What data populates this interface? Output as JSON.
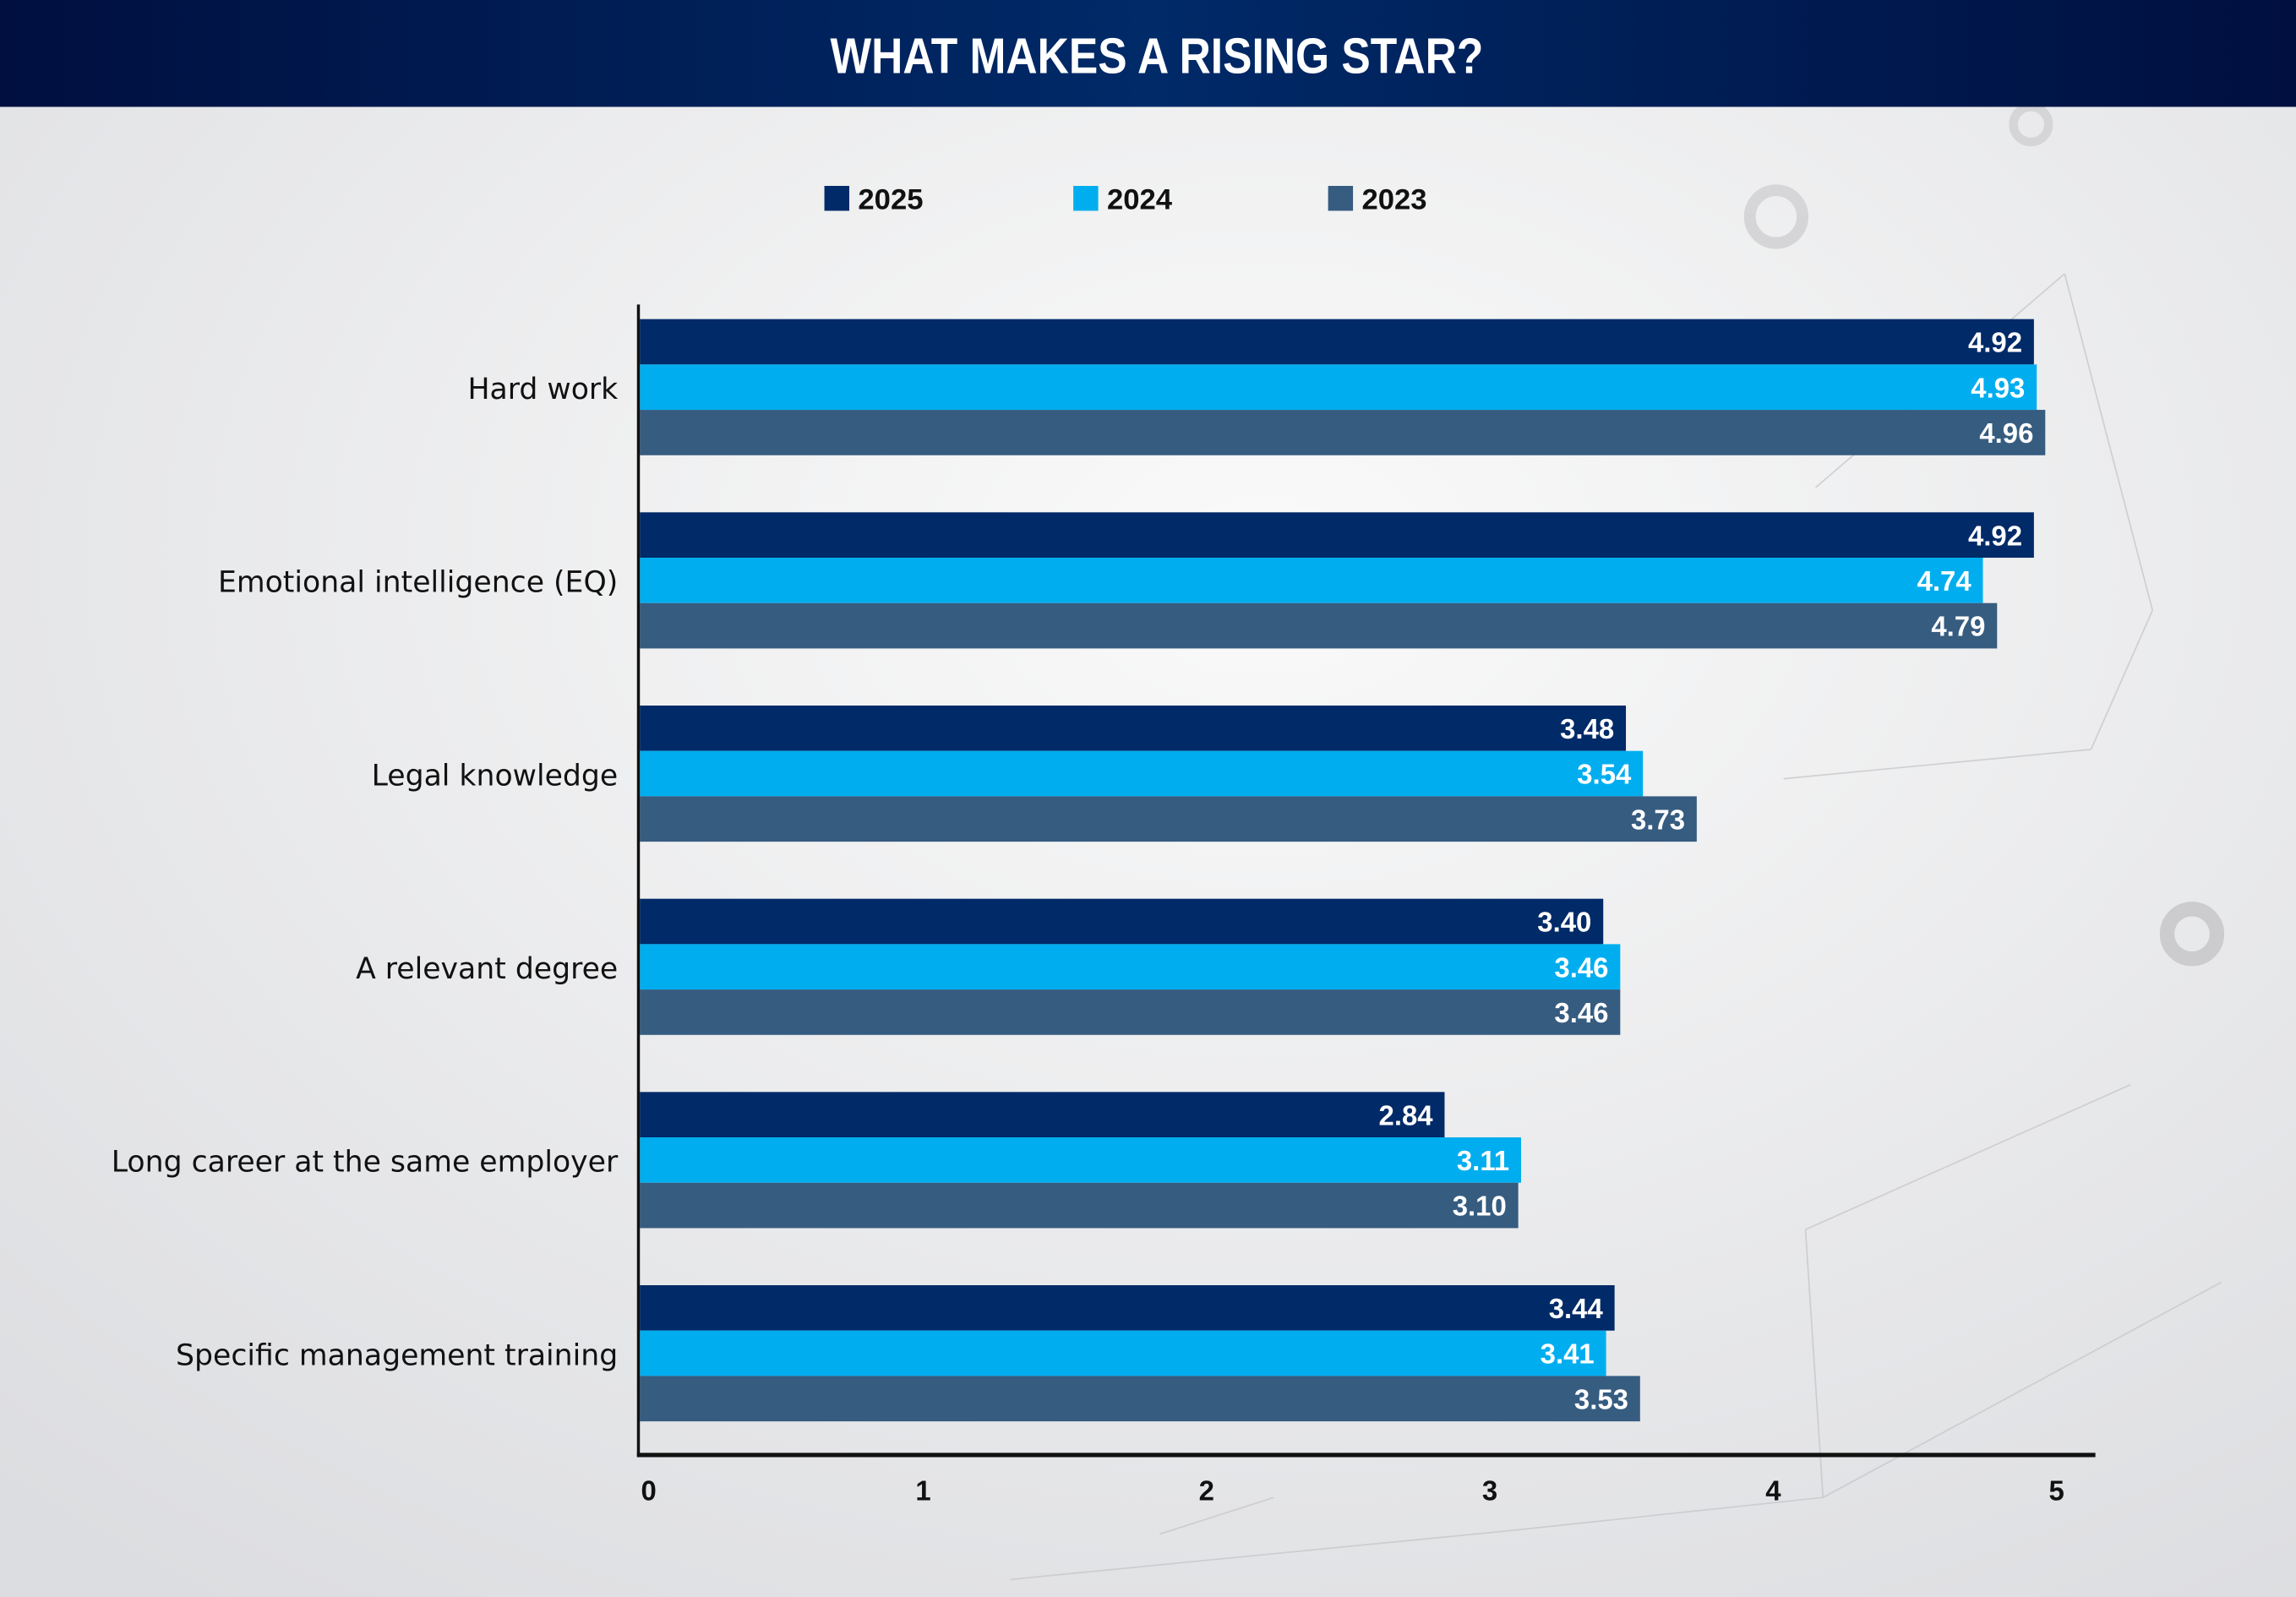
{
  "chart_data": {
    "type": "bar",
    "orientation": "horizontal",
    "title": "WHAT MAKES A RISING STAR?",
    "categories": [
      "Hard work",
      "Emotional intelligence (EQ)",
      "Legal knowledge",
      "A relevant degree",
      "Long career at the same employer",
      "Specific management training"
    ],
    "series": [
      {
        "name": "2025",
        "color": "#002a68",
        "values": [
          4.92,
          4.92,
          3.48,
          3.4,
          2.84,
          3.44
        ],
        "labels": [
          "4.92",
          "4.92",
          "3.48",
          "3.40",
          "2.84",
          "3.44"
        ]
      },
      {
        "name": "2024",
        "color": "#00aeef",
        "values": [
          4.93,
          4.74,
          3.54,
          3.46,
          3.11,
          3.41
        ],
        "labels": [
          "4.93",
          "4.74",
          "3.54",
          "3.46",
          "3.11",
          "3.41"
        ]
      },
      {
        "name": "2023",
        "color": "#365c80",
        "values": [
          4.96,
          4.79,
          3.73,
          3.46,
          3.1,
          3.53
        ],
        "labels": [
          "4.96",
          "4.79",
          "3.73",
          "3.46",
          "3.10",
          "3.53"
        ]
      }
    ],
    "xlim": [
      0,
      5
    ],
    "xticks": [
      "0",
      "1",
      "2",
      "3",
      "4",
      "5"
    ],
    "legend_position": "top",
    "grid": false,
    "header_color": "#00275f"
  }
}
